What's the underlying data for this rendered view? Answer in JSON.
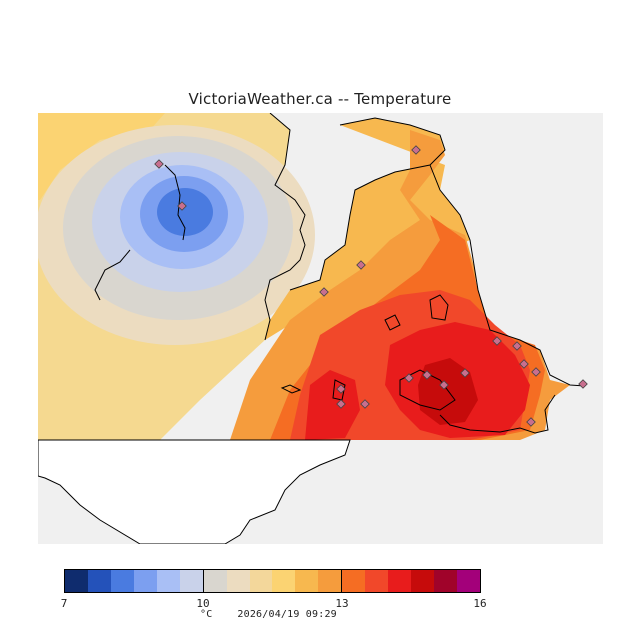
{
  "title": "VictoriaWeather.ca -- Temperature",
  "map": {
    "variable": "Temperature",
    "unit": "°C",
    "ocean_color": "#f0f0f0",
    "land_outside_color": "#ffffff",
    "station_marker_color": "#c86f8e",
    "regional_pattern": [
      {
        "region": "west",
        "level": "warm pale (10–11 °C)",
        "color": "#f5d990"
      },
      {
        "region": "northwest inlet",
        "level": "cool minimum (7–8 °C)",
        "color": "#3a69d6"
      },
      {
        "region": "north",
        "level": "moderate (12–13 °C)",
        "color": "#f7c35e"
      },
      {
        "region": "south",
        "level": "warmest (14–15 °C)",
        "color": "#d80f0f"
      }
    ]
  },
  "colorbar": {
    "colors": [
      "#0f2c6e",
      "#2452ba",
      "#4a7be0",
      "#7c9ff0",
      "#a9bff5",
      "#c9d2ea",
      "#d9d6cf",
      "#ecdcc0",
      "#f3d79b",
      "#fbd372",
      "#f7b84f",
      "#f59c3d",
      "#f56d23",
      "#f1482a",
      "#e81c1c",
      "#c60b0b",
      "#a0032a",
      "#a3007a"
    ],
    "ticks": [
      "7",
      "10",
      "13",
      "16"
    ]
  },
  "footer": {
    "unit": "°C",
    "timestamp": "2026/04/19 09:29"
  }
}
